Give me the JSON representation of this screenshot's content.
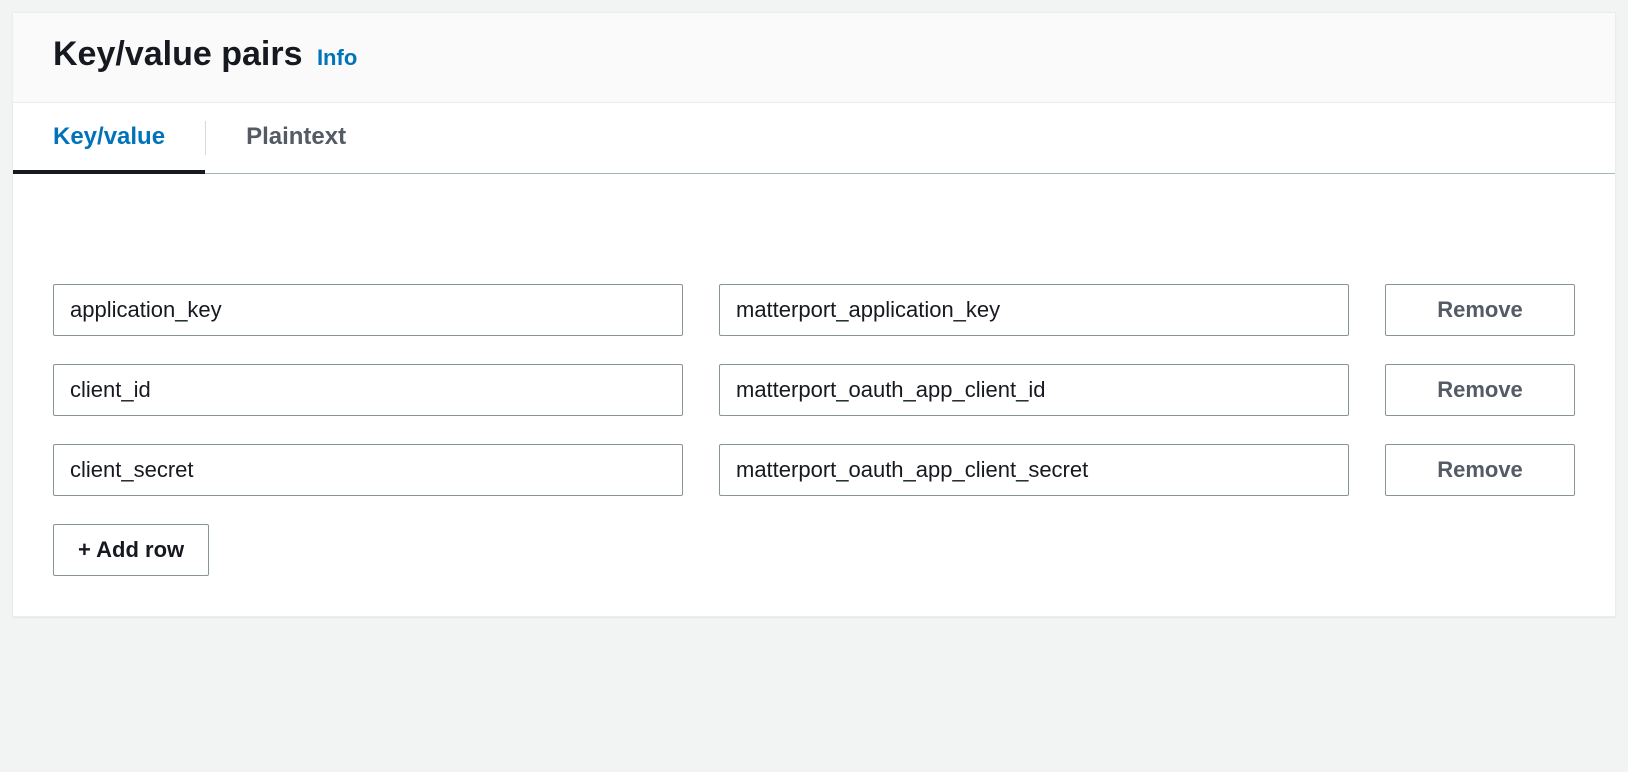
{
  "header": {
    "title": "Key/value pairs",
    "info_label": "Info"
  },
  "tabs": [
    {
      "label": "Key/value",
      "active": true
    },
    {
      "label": "Plaintext",
      "active": false
    }
  ],
  "rows": [
    {
      "key": "application_key",
      "value": "matterport_application_key",
      "remove_label": "Remove"
    },
    {
      "key": "client_id",
      "value": "matterport_oauth_app_client_id",
      "remove_label": "Remove"
    },
    {
      "key": "client_secret",
      "value": "matterport_oauth_app_client_secret",
      "remove_label": "Remove"
    }
  ],
  "add_row_label": "+ Add row",
  "colors": {
    "page_bg": "#f2f3f3",
    "panel_bg": "#ffffff",
    "header_bg": "#fafafa",
    "border": "#eaeded",
    "input_border": "#879596",
    "tab_border": "#aab7b8",
    "tab_separator": "#d5dbdb",
    "text": "#16191f",
    "text_muted": "#545b64",
    "link": "#0073bb",
    "active_tab_underline": "#16191f"
  },
  "typography": {
    "title_fontsize": 34,
    "info_fontsize": 22,
    "tab_fontsize": 24,
    "input_fontsize": 22,
    "button_fontsize": 22,
    "font_family": "Amazon Ember, Helvetica Neue, Arial, sans-serif"
  },
  "layout": {
    "panel_padding": 40,
    "row_gap": 36,
    "row_margin_bottom": 28,
    "remove_button_width": 190
  }
}
